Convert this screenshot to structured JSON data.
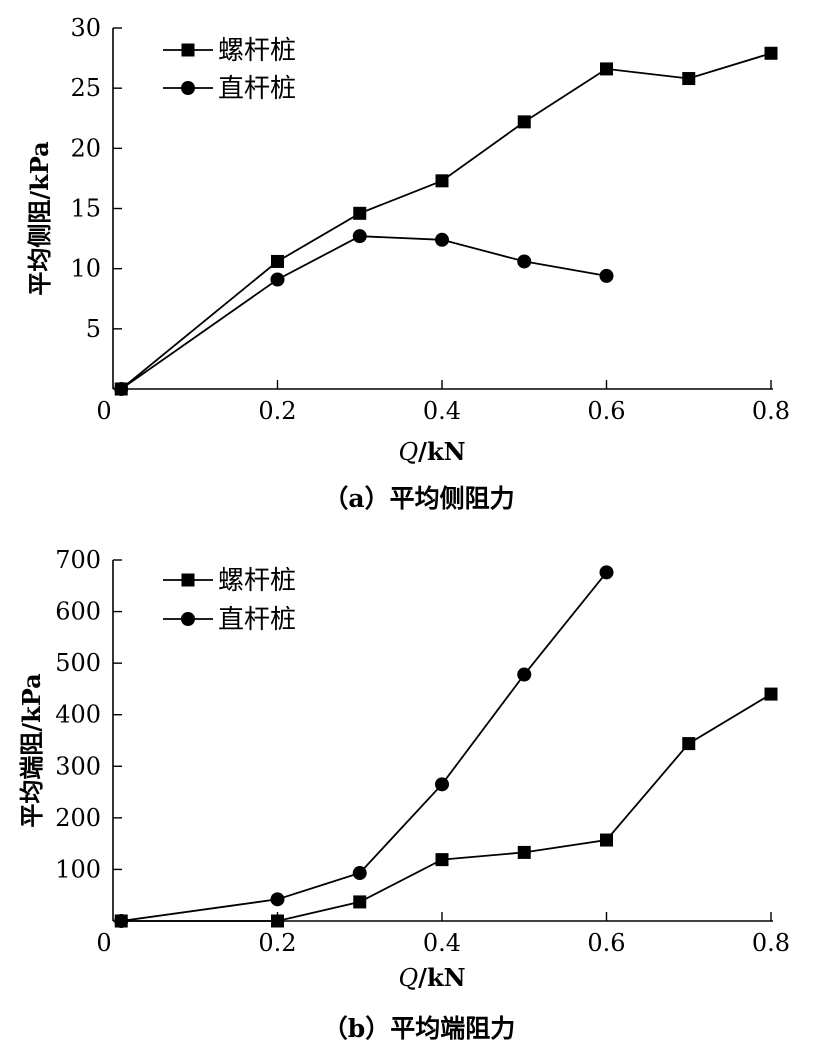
{
  "chart_data": [
    {
      "type": "line",
      "caption": "（a）平均侧阻力",
      "xlabel_italic": "Q",
      "xlabel_rest": "/kN",
      "ylabel": "平均侧阻/kPa",
      "xlim": [
        0,
        0.8
      ],
      "ylim": [
        0,
        30
      ],
      "xticks": [
        {
          "value": 0,
          "label": "0"
        },
        {
          "value": 0.2,
          "label": "0.2"
        },
        {
          "value": 0.4,
          "label": "0.4"
        },
        {
          "value": 0.6,
          "label": "0.6"
        },
        {
          "value": 0.8,
          "label": "0.8"
        }
      ],
      "yticks": [
        {
          "value": 5,
          "label": "5"
        },
        {
          "value": 10,
          "label": "10"
        },
        {
          "value": 15,
          "label": "15"
        },
        {
          "value": 20,
          "label": "20"
        },
        {
          "value": 25,
          "label": "25"
        },
        {
          "value": 30,
          "label": "30"
        }
      ],
      "series": [
        {
          "name": "螺杆桩",
          "marker": "square",
          "x": [
            0.01,
            0.2,
            0.3,
            0.4,
            0.5,
            0.6,
            0.7,
            0.8
          ],
          "y": [
            0,
            10.6,
            14.6,
            17.3,
            22.2,
            26.6,
            25.8,
            27.9
          ]
        },
        {
          "name": "直杆桩",
          "marker": "circle",
          "x": [
            0.01,
            0.2,
            0.3,
            0.4,
            0.5,
            0.6
          ],
          "y": [
            0,
            9.1,
            12.7,
            12.4,
            10.6,
            9.4
          ]
        }
      ]
    },
    {
      "type": "line",
      "caption": "（b）平均端阻力",
      "xlabel_italic": "Q",
      "xlabel_rest": "/kN",
      "ylabel": "平均端阻/kPa",
      "xlim": [
        0,
        0.8
      ],
      "ylim": [
        0,
        700
      ],
      "xticks": [
        {
          "value": 0,
          "label": "0"
        },
        {
          "value": 0.2,
          "label": "0.2"
        },
        {
          "value": 0.4,
          "label": "0.4"
        },
        {
          "value": 0.6,
          "label": "0.6"
        },
        {
          "value": 0.8,
          "label": "0.8"
        }
      ],
      "yticks": [
        {
          "value": 100,
          "label": "100"
        },
        {
          "value": 200,
          "label": "200"
        },
        {
          "value": 300,
          "label": "300"
        },
        {
          "value": 400,
          "label": "400"
        },
        {
          "value": 500,
          "label": "500"
        },
        {
          "value": 600,
          "label": "600"
        },
        {
          "value": 700,
          "label": "700"
        }
      ],
      "series": [
        {
          "name": "螺杆桩",
          "marker": "square",
          "x": [
            0.01,
            0.2,
            0.3,
            0.4,
            0.5,
            0.6,
            0.7,
            0.8
          ],
          "y": [
            0,
            0,
            37,
            119,
            133,
            157,
            344,
            440
          ]
        },
        {
          "name": "直杆桩",
          "marker": "circle",
          "x": [
            0.01,
            0.2,
            0.3,
            0.4,
            0.5,
            0.6
          ],
          "y": [
            0,
            42,
            93,
            265,
            478,
            676
          ]
        }
      ]
    }
  ]
}
